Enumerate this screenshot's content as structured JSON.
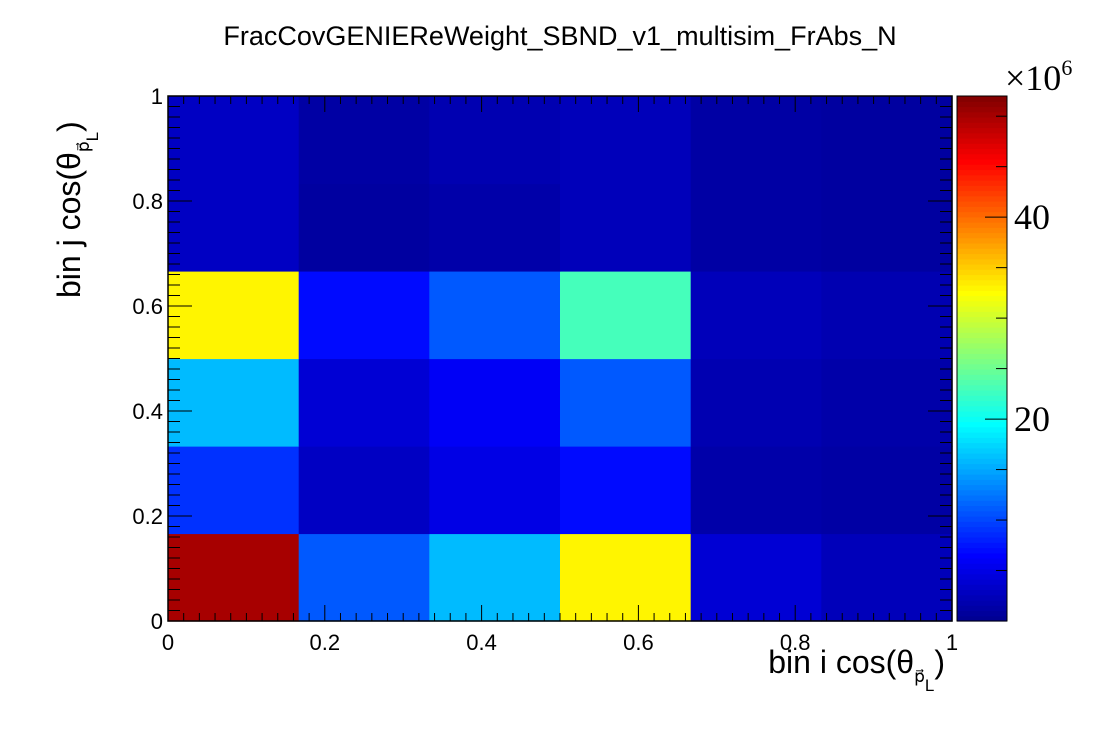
{
  "chart_data": {
    "type": "heatmap",
    "title": "FracCovGENIEReWeight_SBND_v1_multisim_FrAbs_N",
    "xlabel": {
      "prefix": "bin i cos(θ",
      "sub": "p⃗",
      "subsub": "L",
      "suffix": ")"
    },
    "ylabel": {
      "prefix": "bin j cos(θ",
      "sub": "p⃗",
      "subsub": "L",
      "suffix": ")"
    },
    "xlim": [
      0,
      1
    ],
    "ylim": [
      0,
      1
    ],
    "x_ticks": [
      "0",
      "0.2",
      "0.4",
      "0.6",
      "0.8",
      "1"
    ],
    "y_ticks": [
      "0",
      "0.2",
      "0.4",
      "0.6",
      "0.8",
      "1"
    ],
    "x_bin_edges": [
      0,
      0.1667,
      0.3333,
      0.5,
      0.6667,
      0.8333,
      1.0
    ],
    "y_bin_edges": [
      0,
      0.1667,
      0.3333,
      0.5,
      0.6667,
      0.8333,
      1.0
    ],
    "z_rows_from_bottom": [
      [
        50,
        11,
        16,
        33,
        4,
        2.5
      ],
      [
        9,
        3,
        5,
        7,
        1.5,
        1.2
      ],
      [
        16,
        4,
        6,
        11,
        2,
        1.5
      ],
      [
        33,
        7,
        11,
        23,
        2.5,
        2
      ],
      [
        3,
        1,
        1.5,
        2.5,
        1.2,
        1
      ],
      [
        3,
        1.2,
        2,
        2.5,
        1.2,
        1
      ]
    ],
    "z_multiplier": "×10",
    "z_exponent": "6",
    "zlim": [
      0,
      52
    ],
    "z_ticks": [
      {
        "value": 20,
        "label": "20"
      },
      {
        "value": 40,
        "label": "40"
      }
    ],
    "colormap": [
      "#00008f",
      "#0000ff",
      "#0080ff",
      "#00ffff",
      "#80ff80",
      "#ffff00",
      "#ff8000",
      "#ff0000",
      "#800000"
    ],
    "grid": false
  }
}
